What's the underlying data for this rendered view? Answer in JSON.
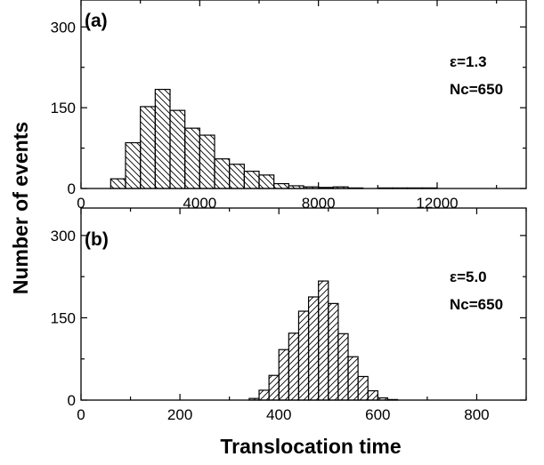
{
  "chart_data": [
    {
      "type": "bar",
      "panel_label": "(a)",
      "annotations": [
        "ε=1.3",
        "Nc=650"
      ],
      "bin_width": 500,
      "bins": [
        {
          "x0": 1000,
          "x1": 1500,
          "count": 18
        },
        {
          "x0": 1500,
          "x1": 2000,
          "count": 85
        },
        {
          "x0": 2000,
          "x1": 2500,
          "count": 152
        },
        {
          "x0": 2500,
          "x1": 3000,
          "count": 184
        },
        {
          "x0": 3000,
          "x1": 3500,
          "count": 145
        },
        {
          "x0": 3500,
          "x1": 4000,
          "count": 112
        },
        {
          "x0": 4000,
          "x1": 4500,
          "count": 99
        },
        {
          "x0": 4500,
          "x1": 5000,
          "count": 55
        },
        {
          "x0": 5000,
          "x1": 5500,
          "count": 45
        },
        {
          "x0": 5500,
          "x1": 6000,
          "count": 32
        },
        {
          "x0": 6000,
          "x1": 6500,
          "count": 25
        },
        {
          "x0": 6500,
          "x1": 7000,
          "count": 9
        },
        {
          "x0": 7000,
          "x1": 7500,
          "count": 5
        },
        {
          "x0": 7500,
          "x1": 8000,
          "count": 3
        },
        {
          "x0": 8000,
          "x1": 8500,
          "count": 2
        },
        {
          "x0": 8500,
          "x1": 9000,
          "count": 3
        },
        {
          "x0": 9000,
          "x1": 9500,
          "count": 1
        },
        {
          "x0": 9500,
          "x1": 10000,
          "count": 0
        },
        {
          "x0": 10000,
          "x1": 10500,
          "count": 1
        },
        {
          "x0": 10500,
          "x1": 11000,
          "count": 1
        },
        {
          "x0": 11000,
          "x1": 11500,
          "count": 1
        },
        {
          "x0": 11500,
          "x1": 12000,
          "count": 1
        }
      ],
      "xlim": [
        0,
        15000
      ],
      "ylim": [
        0,
        350
      ],
      "xticks": [
        "0",
        "4000",
        "8000",
        "12000"
      ],
      "yticks": [
        "0",
        "150",
        "300"
      ],
      "xtick_values": [
        0,
        4000,
        8000,
        12000
      ],
      "ytick_values": [
        0,
        150,
        300
      ],
      "hatch": "backslash"
    },
    {
      "type": "bar",
      "panel_label": "(b)",
      "annotations": [
        "ε=5.0",
        "Nc=650"
      ],
      "bin_width": 20,
      "bins": [
        {
          "x0": 340,
          "x1": 360,
          "count": 3
        },
        {
          "x0": 360,
          "x1": 380,
          "count": 18
        },
        {
          "x0": 380,
          "x1": 400,
          "count": 45
        },
        {
          "x0": 400,
          "x1": 420,
          "count": 92
        },
        {
          "x0": 420,
          "x1": 440,
          "count": 122
        },
        {
          "x0": 440,
          "x1": 460,
          "count": 162
        },
        {
          "x0": 460,
          "x1": 480,
          "count": 188
        },
        {
          "x0": 480,
          "x1": 500,
          "count": 217
        },
        {
          "x0": 500,
          "x1": 520,
          "count": 176
        },
        {
          "x0": 520,
          "x1": 540,
          "count": 121
        },
        {
          "x0": 540,
          "x1": 560,
          "count": 79
        },
        {
          "x0": 560,
          "x1": 580,
          "count": 43
        },
        {
          "x0": 580,
          "x1": 600,
          "count": 17
        },
        {
          "x0": 600,
          "x1": 620,
          "count": 4
        },
        {
          "x0": 620,
          "x1": 640,
          "count": 1
        }
      ],
      "xlim": [
        0,
        900
      ],
      "ylim": [
        0,
        350
      ],
      "xticks": [
        "0",
        "200",
        "400",
        "600",
        "800"
      ],
      "yticks": [
        "0",
        "150",
        "300"
      ],
      "xtick_values": [
        0,
        200,
        400,
        600,
        800
      ],
      "ytick_values": [
        0,
        150,
        300
      ],
      "hatch": "slash"
    }
  ],
  "ylabel": "Number of events",
  "xlabel": "Translocation time"
}
